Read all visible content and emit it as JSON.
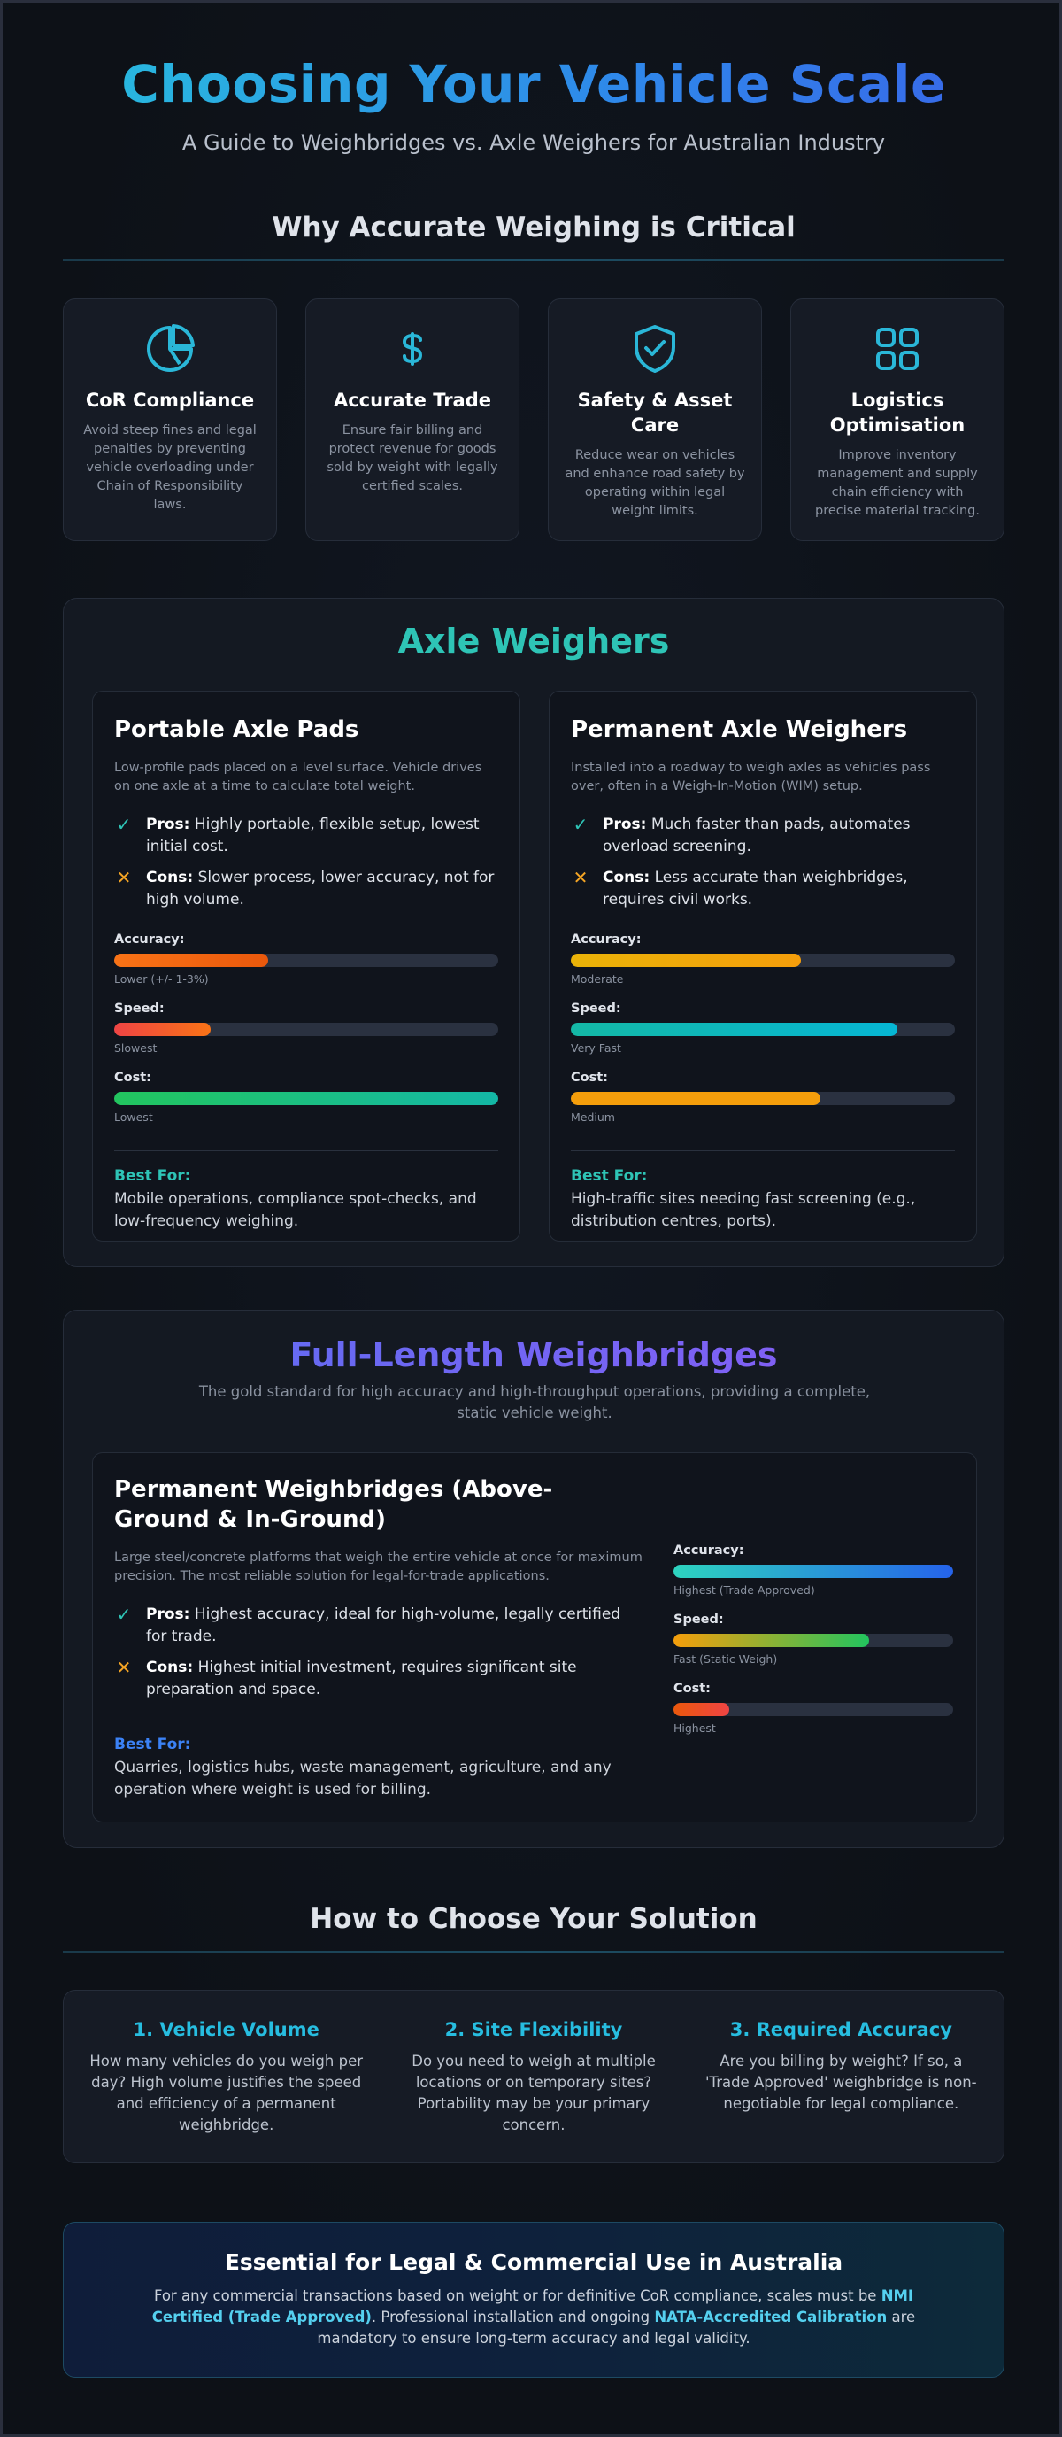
{
  "header": {
    "title": "Choosing Your Vehicle Scale",
    "subtitle": "A Guide to Weighbridges vs. Axle Weighers for Australian Industry"
  },
  "why": {
    "heading": "Why Accurate Weighing is Critical",
    "cards": [
      {
        "icon": "pie-chart-icon",
        "title": "CoR Compliance",
        "text": "Avoid steep fines and legal penalties by preventing vehicle overloading under Chain of Responsibility laws."
      },
      {
        "icon": "dollar-icon",
        "title": "Accurate Trade",
        "text": "Ensure fair billing and protect revenue for goods sold by weight with legally certified scales."
      },
      {
        "icon": "shield-check-icon",
        "title": "Safety & Asset Care",
        "text": "Reduce wear on vehicles and enhance road safety by operating within legal weight limits."
      },
      {
        "icon": "grid-icon",
        "title": "Logistics Optimisation",
        "text": "Improve inventory management and supply chain efficiency with precise material tracking."
      }
    ]
  },
  "axle": {
    "title": "Axle Weighers",
    "title_color": "#2ec4b6",
    "cards": [
      {
        "title": "Portable Axle Pads",
        "desc": "Low-profile pads placed on a level surface. Vehicle drives on one axle at a time to calculate total weight.",
        "pros_label": "Pros:",
        "pros": "Highly portable, flexible setup, lowest initial cost.",
        "cons_label": "Cons:",
        "cons": "Slower process, lower accuracy, not for high volume.",
        "metrics": [
          {
            "label": "Accuracy:",
            "value": 0.4,
            "note": "Lower (+/- 1-3%)",
            "gradient": "linear-gradient(90deg,#f97316,#ea580c)"
          },
          {
            "label": "Speed:",
            "value": 0.25,
            "note": "Slowest",
            "gradient": "linear-gradient(90deg,#ef4444,#f97316)"
          },
          {
            "label": "Cost:",
            "value": 1.0,
            "note": "Lowest",
            "gradient": "linear-gradient(90deg,#22c55e,#14b8a6)"
          }
        ],
        "best_label": "Best For:",
        "best": "Mobile operations, compliance spot-checks, and low-frequency weighing."
      },
      {
        "title": "Permanent Axle Weighers",
        "desc": "Installed into a roadway to weigh axles as vehicles pass over, often in a Weigh-In-Motion (WIM) setup.",
        "pros_label": "Pros:",
        "pros": "Much faster than pads, automates overload screening.",
        "cons_label": "Cons:",
        "cons": "Less accurate than weighbridges, requires civil works.",
        "metrics": [
          {
            "label": "Accuracy:",
            "value": 0.6,
            "note": "Moderate",
            "gradient": "linear-gradient(90deg,#eab308,#f59e0b)"
          },
          {
            "label": "Speed:",
            "value": 0.85,
            "note": "Very Fast",
            "gradient": "linear-gradient(90deg,#14b8a6,#06b6d4)"
          },
          {
            "label": "Cost:",
            "value": 0.65,
            "note": "Medium",
            "gradient": "linear-gradient(90deg,#f59e0b,#f59e0b)"
          }
        ],
        "best_label": "Best For:",
        "best": "High-traffic sites needing fast screening (e.g., distribution centres, ports)."
      }
    ]
  },
  "weighbridge": {
    "title": "Full-Length Weighbridges",
    "intro": "The gold standard for high accuracy and high-throughput operations, providing a complete, static vehicle weight.",
    "card": {
      "title": "Permanent Weighbridges (Above-Ground & In-Ground)",
      "desc": "Large steel/concrete platforms that weigh the entire vehicle at once for maximum precision. The most reliable solution for legal-for-trade applications.",
      "pros_label": "Pros:",
      "pros": "Highest accuracy, ideal for high-volume, legally certified for trade.",
      "cons_label": "Cons:",
      "cons": "Highest initial investment, requires significant site preparation and space.",
      "best_label": "Best For:",
      "best": "Quarries, logistics hubs, waste management, agriculture, and any operation where weight is used for billing.",
      "metrics": [
        {
          "label": "Accuracy:",
          "value": 1.0,
          "note": "Highest (Trade Approved)",
          "gradient": "linear-gradient(90deg,#2dd4bf,#2563eb)"
        },
        {
          "label": "Speed:",
          "value": 0.7,
          "note": "Fast (Static Weigh)",
          "gradient": "linear-gradient(90deg,#f59e0b,#22c55e)"
        },
        {
          "label": "Cost:",
          "value": 0.2,
          "note": "Highest",
          "gradient": "linear-gradient(90deg,#ea580c,#ef4444)"
        }
      ]
    }
  },
  "choose": {
    "heading": "How to Choose Your Solution",
    "items": [
      {
        "title": "1. Vehicle Volume",
        "text": "How many vehicles do you weigh per day? High volume justifies the speed and efficiency of a permanent weighbridge."
      },
      {
        "title": "2. Site Flexibility",
        "text": "Do you need to weigh at multiple locations or on temporary sites? Portability may be your primary concern."
      },
      {
        "title": "3. Required Accuracy",
        "text": "Are you billing by weight? If so, a 'Trade Approved' weighbridge is non-negotiable for legal compliance."
      }
    ]
  },
  "legal": {
    "title": "Essential for Legal & Commercial Use in Australia",
    "text_1": "For any commercial transactions based on weight or for definitive CoR compliance, scales must be ",
    "hl_1": "NMI Certified (Trade Approved)",
    "text_2": ". Professional installation and ongoing ",
    "hl_2": "NATA-Accredited Calibration",
    "text_3": " are mandatory to ensure long-term accuracy and legal validity."
  },
  "colors": {
    "pros_check": "#2ec4b6",
    "cons_cross": "#f5a524",
    "axle_best": "#2ec4b6",
    "bridge_best": "#3b82f6",
    "icon_color": "#2ab7d8"
  }
}
